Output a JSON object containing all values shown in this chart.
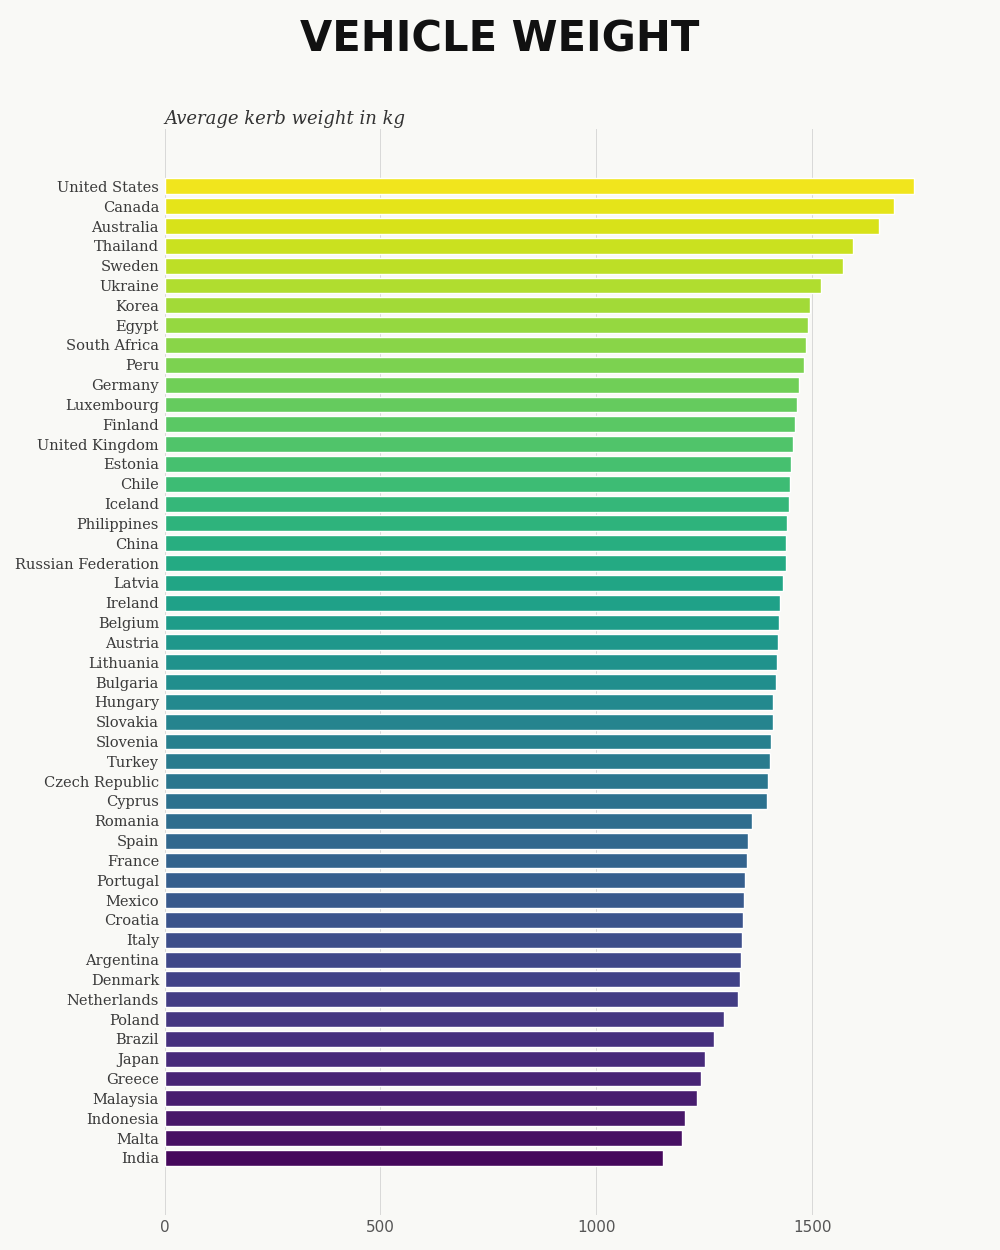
{
  "title": "VEHICLE WEIGHT",
  "subtitle": "Average kerb weight in kg",
  "countries": [
    "United States",
    "Canada",
    "Australia",
    "Thailand",
    "Sweden",
    "Ukraine",
    "Korea",
    "Egypt",
    "South Africa",
    "Peru",
    "Germany",
    "Luxembourg",
    "Finland",
    "United Kingdom",
    "Estonia",
    "Chile",
    "Iceland",
    "Philippines",
    "China",
    "Russian Federation",
    "Latvia",
    "Ireland",
    "Belgium",
    "Austria",
    "Lithuania",
    "Bulgaria",
    "Hungary",
    "Slovakia",
    "Slovenia",
    "Turkey",
    "Czech Republic",
    "Cyprus",
    "Romania",
    "Spain",
    "France",
    "Portugal",
    "Mexico",
    "Croatia",
    "Italy",
    "Argentina",
    "Denmark",
    "Netherlands",
    "Poland",
    "Brazil",
    "Japan",
    "Greece",
    "Malaysia",
    "Indonesia",
    "Malta",
    "India"
  ],
  "values": [
    1735,
    1690,
    1655,
    1595,
    1570,
    1520,
    1495,
    1490,
    1485,
    1480,
    1470,
    1465,
    1460,
    1455,
    1450,
    1448,
    1445,
    1442,
    1440,
    1438,
    1432,
    1425,
    1423,
    1420,
    1418,
    1415,
    1410,
    1408,
    1405,
    1402,
    1398,
    1395,
    1360,
    1352,
    1348,
    1345,
    1342,
    1340,
    1337,
    1335,
    1332,
    1328,
    1295,
    1272,
    1252,
    1242,
    1232,
    1205,
    1198,
    1155
  ],
  "background_color": "#f9f9f6",
  "xlim": [
    0,
    1900
  ],
  "xticks": [
    0,
    500,
    1000,
    1500
  ],
  "title_fontsize": 30,
  "subtitle_fontsize": 13,
  "label_fontsize": 10.5,
  "bar_height": 0.8
}
